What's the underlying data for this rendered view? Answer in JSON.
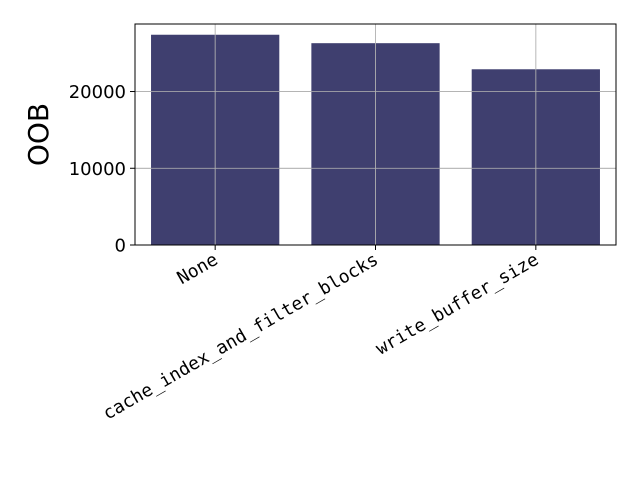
{
  "chart_data": {
    "type": "bar",
    "categories": [
      "None",
      "cache_index_and_filter_blocks",
      "write_buffer_size"
    ],
    "values": [
      27400,
      26300,
      22900
    ],
    "title": "",
    "xlabel": "",
    "ylabel": "OOB",
    "ylim": [
      0,
      28800
    ],
    "yticks": [
      0,
      10000,
      20000
    ],
    "ytick_labels": [
      "0",
      "10000",
      "20000"
    ],
    "grid": true,
    "bar_color": "#3f3f6f",
    "category_label_rotation": "30 degrees, right-aligned"
  }
}
